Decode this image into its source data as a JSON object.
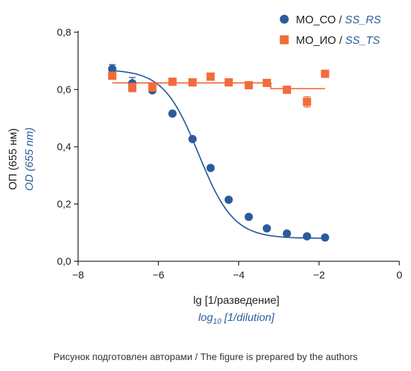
{
  "chart_data": {
    "type": "scatter",
    "ylabel_ru": "ОП (655 нм)",
    "ylabel_en": "OD (655 nm)",
    "xlabel_ru": "lg [1/разведение]",
    "xlabel_en_prefix": "log",
    "xlabel_en_sub": "10",
    "xlabel_en_suffix": " [1/dilution]",
    "xlim": [
      -8,
      0
    ],
    "ylim": [
      0,
      0.8
    ],
    "x_ticks": [
      -8,
      -6,
      -4,
      -2,
      0
    ],
    "x_tick_labels": [
      "−8",
      "−6",
      "−4",
      "−2",
      "0"
    ],
    "y_ticks": [
      0,
      0.2,
      0.4,
      0.6,
      0.8
    ],
    "y_tick_labels": [
      "0,0",
      "0,2",
      "0,4",
      "0,6",
      "0,8"
    ],
    "legend_position": "top-right",
    "series": [
      {
        "name_plain": "МО_СО / ",
        "name_em": "SS_RS",
        "marker": "circle",
        "color": "#2a5b9c",
        "x": [
          -7.15,
          -6.65,
          -6.15,
          -5.65,
          -5.15,
          -4.7,
          -4.25,
          -3.75,
          -3.3,
          -2.8,
          -2.3,
          -1.85
        ],
        "y": [
          0.672,
          0.622,
          0.597,
          0.516,
          0.427,
          0.326,
          0.215,
          0.155,
          0.115,
          0.097,
          0.087,
          0.083
        ],
        "err": [
          0.015,
          0.02,
          0.008,
          0.005,
          0.005,
          0.005,
          0.005,
          0.005,
          0.005,
          0.005,
          0.005,
          0.005
        ],
        "fit": {
          "type": "sigmoid",
          "top": 0.67,
          "bottom": 0.08,
          "ec50": -5.0,
          "hill": 1.0
        }
      },
      {
        "name_plain": "МО_ИО / ",
        "name_em": "SS_TS",
        "marker": "square",
        "color": "#f26b3a",
        "x": [
          -7.15,
          -6.65,
          -6.15,
          -5.65,
          -5.15,
          -4.7,
          -4.25,
          -3.75,
          -3.3,
          -2.8,
          -2.3,
          -1.85
        ],
        "y": [
          0.648,
          0.607,
          0.607,
          0.627,
          0.625,
          0.645,
          0.625,
          0.615,
          0.623,
          0.599,
          0.557,
          0.655
        ],
        "err": [
          0.01,
          0.015,
          0.008,
          0.005,
          0.005,
          0.008,
          0.005,
          0.006,
          0.006,
          0.005,
          0.018,
          0.006
        ],
        "fit": {
          "type": "constant",
          "value": 0.623,
          "x_end": -3.2,
          "value_end": 0.603
        }
      }
    ]
  },
  "caption": "Рисунок подготовлен авторами / The figure is prepared by the authors"
}
